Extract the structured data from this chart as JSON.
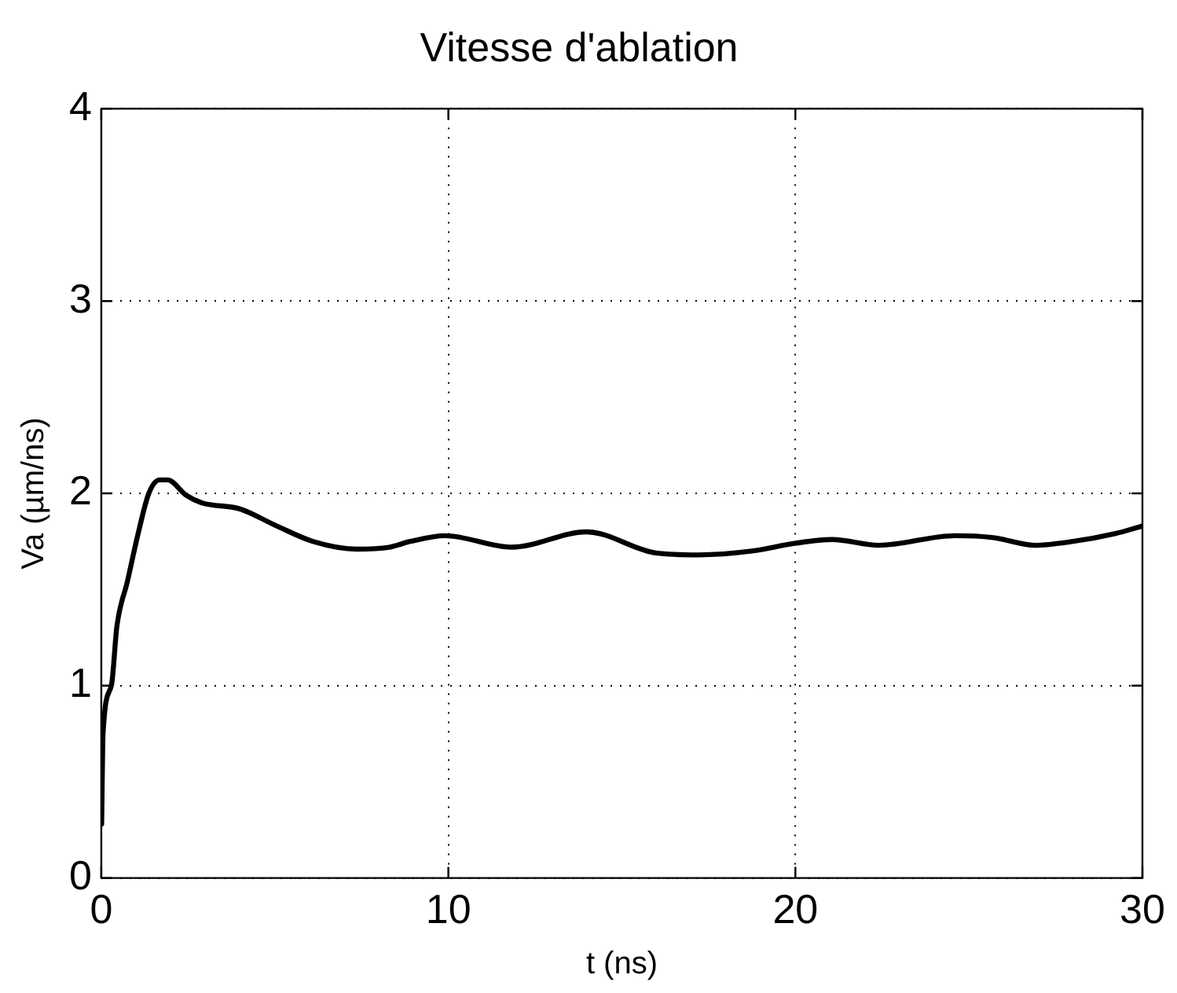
{
  "chart_data": {
    "type": "line",
    "title": "Vitesse d'ablation",
    "xlabel": "t (ns)",
    "ylabel": "Va (µm/ns)",
    "x": [
      0.01,
      0.05,
      0.29,
      0.45,
      0.75,
      1.06,
      1.37,
      1.68,
      1.91,
      2.45,
      2.91,
      3.98,
      5.06,
      6.1,
      7.37,
      8.3,
      8.9,
      9.9,
      11.83,
      13.98,
      15.98,
      17.2,
      18.75,
      19.98,
      21.06,
      22.4,
      24.6,
      25.7,
      26.9,
      28.0,
      29.2,
      30
    ],
    "series": [
      {
        "color": "#000000",
        "values": [
          0.28,
          0.75,
          1.0,
          1.31,
          1.54,
          1.79,
          2.0,
          2.07,
          2.07,
          1.99,
          1.95,
          1.92,
          1.83,
          1.75,
          1.71,
          1.72,
          1.75,
          1.78,
          1.72,
          1.8,
          1.69,
          1.68,
          1.7,
          1.74,
          1.76,
          1.73,
          1.78,
          1.77,
          1.73,
          1.75,
          1.79,
          1.83
        ]
      }
    ],
    "xlim": [
      0,
      30
    ],
    "xticks": [
      0,
      10,
      20,
      30
    ],
    "ylim": [
      0,
      4
    ],
    "yticks": [
      0,
      1,
      2,
      3,
      4
    ],
    "grid": true,
    "legend": false,
    "marker": "none",
    "line_style": "solid"
  }
}
